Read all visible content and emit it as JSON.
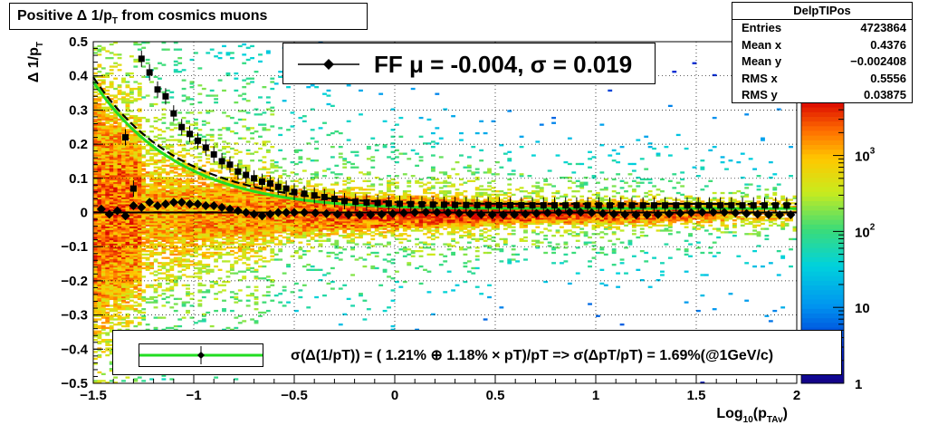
{
  "title": "Positive Δ 1/p",
  "title_sub": "T",
  "title_tail": " from cosmics muons",
  "stats": {
    "name": "DelpTIPos",
    "rows": [
      {
        "label": "Entries",
        "value": "4723864"
      },
      {
        "label": "Mean x",
        "value": "0.4376"
      },
      {
        "label": "Mean y",
        "value": "−0.002408"
      },
      {
        "label": "RMS x",
        "value": "0.5556"
      },
      {
        "label": "RMS y",
        "value": "0.03875"
      }
    ]
  },
  "fit_legend": "FF μ = -0.004, σ =   0.019",
  "resolution_legend": "σ(Δ(1/pT)) = ( 1.21% ⊕  1.18% × pT)/pT => σ(ΔpT/pT) =  1.69%(@1GeV/c)",
  "colors": {
    "fit_curve": "#22dd22",
    "markers": "#000000"
  },
  "chart_data": {
    "type": "heatmap",
    "xlabel": "Log",
    "xlabel_sub": "10",
    "xlabel_tail": "(p",
    "xlabel_sub2": "TAv",
    "xlabel_end": ")",
    "ylabel": "Δ 1/p",
    "ylabel_sub": "T",
    "xlim": [
      -1.5,
      2
    ],
    "ylim": [
      -0.5,
      0.5
    ],
    "x_ticks": [
      {
        "v": -1.5,
        "label": "−1.5"
      },
      {
        "v": -1,
        "label": "−1"
      },
      {
        "v": -0.5,
        "label": "−0.5"
      },
      {
        "v": 0,
        "label": "0"
      },
      {
        "v": 0.5,
        "label": "0.5"
      },
      {
        "v": 1,
        "label": "1"
      },
      {
        "v": 1.5,
        "label": "1.5"
      },
      {
        "v": 2,
        "label": "2"
      }
    ],
    "y_ticks": [
      {
        "v": -0.5,
        "label": "−0.5"
      },
      {
        "v": -0.4,
        "label": "−0.4"
      },
      {
        "v": -0.3,
        "label": "−0.3"
      },
      {
        "v": -0.2,
        "label": "−0.2"
      },
      {
        "v": -0.1,
        "label": "−0.1"
      },
      {
        "v": 0,
        "label": "0"
      },
      {
        "v": 0.1,
        "label": "0.1"
      },
      {
        "v": 0.2,
        "label": "0.2"
      },
      {
        "v": 0.3,
        "label": "0.3"
      },
      {
        "v": 0.4,
        "label": "0.4"
      },
      {
        "v": 0.5,
        "label": "0.5"
      }
    ],
    "colorbar": {
      "scale": "log",
      "ticks": [
        {
          "v": 1,
          "label": "1"
        },
        {
          "v": 10,
          "label": "10"
        },
        {
          "v": 100,
          "label": "10",
          "exp": "2"
        },
        {
          "v": 1000,
          "label": "10",
          "exp": "3"
        }
      ],
      "range": [
        1,
        5000
      ]
    },
    "grid": true,
    "mean_points": {
      "x": [
        -1.46,
        -1.42,
        -1.38,
        -1.34,
        -1.3,
        -1.26,
        -1.22,
        -1.18,
        -1.14,
        -1.1,
        -1.06,
        -1.02,
        -0.98,
        -0.94,
        -0.9,
        -0.86,
        -0.82,
        -0.78,
        -0.74,
        -0.7,
        -0.66,
        -0.62,
        -0.58,
        -0.54,
        -0.5
      ],
      "y": [
        0.01,
        -0.005,
        0.005,
        -0.01,
        0.02,
        0.015,
        0.03,
        0.02,
        0.025,
        0.03,
        0.03,
        0.025,
        0.025,
        0.02,
        0.02,
        0.015,
        0.01,
        0.005,
        0.0,
        -0.005,
        -0.01,
        -0.005,
        0.0,
        0.0,
        0.0
      ]
    },
    "sigma_points": {
      "x": [
        -1.34,
        -1.3,
        -1.26,
        -1.22,
        -1.18,
        -1.14,
        -1.1,
        -1.06,
        -1.02,
        -0.98,
        -0.94,
        -0.9,
        -0.86,
        -0.82,
        -0.78,
        -0.74,
        -0.7,
        -0.66,
        -0.62,
        -0.58,
        -0.54,
        -0.5,
        -0.45,
        -0.4,
        -0.35,
        -0.3
      ],
      "y": [
        0.22,
        0.07,
        0.45,
        0.41,
        0.36,
        0.34,
        0.29,
        0.25,
        0.23,
        0.21,
        0.19,
        0.17,
        0.15,
        0.14,
        0.12,
        0.11,
        0.1,
        0.09,
        0.085,
        0.075,
        0.07,
        0.06,
        0.055,
        0.05,
        0.045,
        0.04
      ]
    },
    "fit_curve": {
      "a": 0.0121,
      "b": 0.0118
    }
  }
}
